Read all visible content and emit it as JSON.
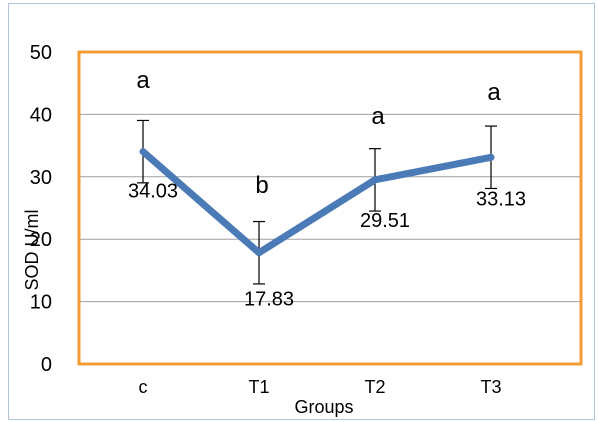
{
  "chart_data": {
    "type": "line",
    "categories": [
      "c",
      "T1",
      "T2",
      "T3"
    ],
    "values": [
      34.03,
      17.83,
      29.51,
      33.13
    ],
    "data_labels": [
      "34.03",
      "17.83",
      "29.51",
      "33.13"
    ],
    "error": [
      5,
      5,
      5,
      5
    ],
    "significance_letters": [
      "a",
      "b",
      "a",
      "a"
    ],
    "title": "",
    "xlabel": "Groups",
    "ylabel": "SOD U/ml",
    "ylim": [
      0,
      50
    ],
    "yticks": [
      0,
      10,
      20,
      30,
      40,
      50
    ],
    "grid": true,
    "legend": "none",
    "colors": {
      "line": "#4a7bb7",
      "plot_border": "#f39c35",
      "frame_border": "#b0c4de",
      "grid": "#a0a0a0",
      "error_bar": "#000000"
    }
  }
}
